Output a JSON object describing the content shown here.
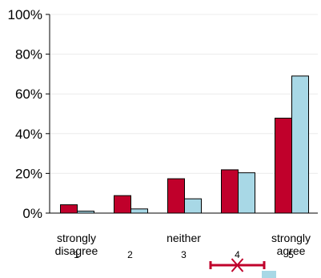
{
  "chart_data": {
    "type": "bar",
    "categories": [
      "1",
      "2",
      "3",
      "4",
      "5"
    ],
    "category_words": {
      "1": "strongly disagree",
      "3": "neither",
      "5": "strongly agree"
    },
    "series": [
      {
        "values": [
          4.2,
          8.8,
          17.3,
          21.8,
          47.8
        ],
        "color": "#c0002b"
      },
      {
        "values": [
          1.0,
          2.1,
          7.2,
          20.3,
          69.0
        ],
        "color": "#a8d8e6"
      }
    ],
    "ylim": [
      0,
      100
    ],
    "yticks": [
      "0%",
      "20%",
      "40%",
      "60%",
      "80%",
      "100%"
    ],
    "grid": true,
    "annotation": {
      "mean_marker_a": 4.0,
      "range_a": [
        3.5,
        4.5
      ],
      "color_a": "#c0002b",
      "color_b": "#a8d8e6"
    }
  }
}
